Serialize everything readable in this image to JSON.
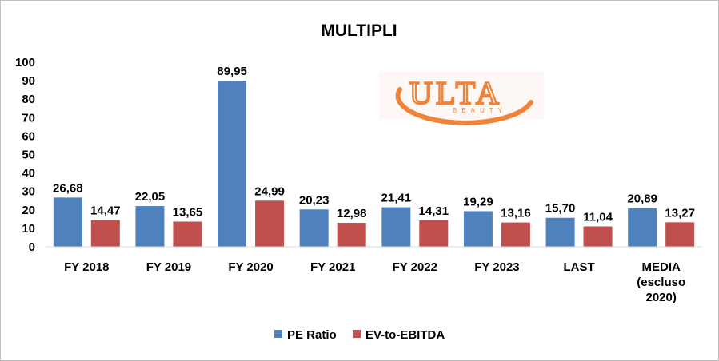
{
  "chart_data": {
    "type": "bar",
    "title": "MULTIPLI",
    "categories": [
      [
        "FY 2018"
      ],
      [
        "FY 2019"
      ],
      [
        "FY 2020"
      ],
      [
        "FY 2021"
      ],
      [
        "FY 2022"
      ],
      [
        "FY 2023"
      ],
      [
        "LAST"
      ],
      [
        "MEDIA",
        "(escluso",
        "2020)"
      ]
    ],
    "series": [
      {
        "name": "PE Ratio",
        "color": "#4f81bd",
        "values": [
          26.68,
          22.05,
          89.95,
          20.23,
          21.41,
          19.29,
          15.7,
          20.89
        ],
        "labels": [
          "26,68",
          "22,05",
          "89,95",
          "20,23",
          "21,41",
          "19,29",
          "15,70",
          "20,89"
        ]
      },
      {
        "name": "EV-to-EBITDA",
        "color": "#c0504d",
        "values": [
          14.47,
          13.65,
          24.99,
          12.98,
          14.31,
          13.16,
          11.04,
          13.27
        ],
        "labels": [
          "14,47",
          "13,65",
          "24,99",
          "12,98",
          "14,31",
          "13,16",
          "11,04",
          "13,27"
        ]
      }
    ],
    "ylim": [
      0,
      100
    ],
    "yticks": [
      0,
      10,
      20,
      30,
      40,
      50,
      60,
      70,
      80,
      90,
      100
    ],
    "grid": false,
    "legend_position": "bottom"
  },
  "logo": {
    "wordmark": "ULTA",
    "tagline": "BEAUTY",
    "color": "#f0833a"
  }
}
